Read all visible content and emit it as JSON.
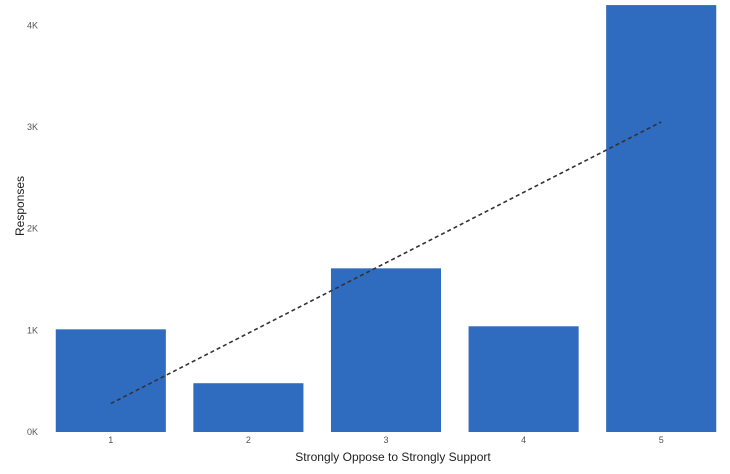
{
  "chart_data": {
    "type": "bar",
    "categories": [
      "1",
      "2",
      "3",
      "4",
      "5"
    ],
    "series": [
      {
        "values": [
          1010,
          480,
          1610,
          1040,
          4200
        ],
        "color": "#2f6bbf"
      }
    ],
    "trendline": {
      "style": "dashed",
      "color": "#333333",
      "points": [
        [
          1,
          280
        ],
        [
          5,
          3050
        ]
      ]
    },
    "xlabel": "Strongly Oppose to Strongly Support",
    "ylabel": "Responses",
    "ylim": [
      0,
      4250
    ],
    "yticks": [
      0,
      1000,
      2000,
      3000,
      4000
    ],
    "ytick_labels": [
      "0K",
      "1K",
      "2K",
      "3K",
      "4K"
    ],
    "grid": false,
    "legend": "none"
  }
}
